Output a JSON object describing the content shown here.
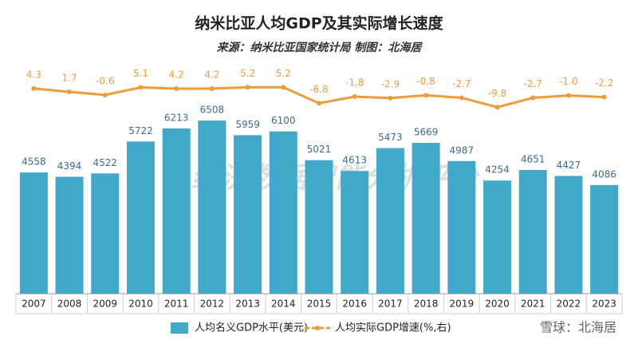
{
  "chart_data": {
    "type": "bar_line",
    "title": "纳米比亚人均GDP及其实际增长速度",
    "subtitle": "来源：纳米比亚国家统计局  制图：北海居",
    "annotations": [
      "经济数据智能分析平台",
      "雪球：北海居"
    ],
    "categories": [
      "2007",
      "2008",
      "2009",
      "2010",
      "2011",
      "2012",
      "2013",
      "2014",
      "2015",
      "2016",
      "2017",
      "2018",
      "2019",
      "2020",
      "2021",
      "2022",
      "2023"
    ],
    "series": [
      {
        "name": "人均名义GDP水平(美元)",
        "type": "bar",
        "color": "#41a8c9",
        "values": [
          4558,
          4394,
          4522,
          5722,
          6213,
          6508,
          5959,
          6100,
          5021,
          4613,
          5473,
          5669,
          4987,
          4254,
          4651,
          4427,
          4086
        ]
      },
      {
        "name": "人均实际GDP增速(%,右)",
        "type": "line",
        "axis": "y2",
        "color": "#ee9b3a",
        "values": [
          4.3,
          1.7,
          -0.6,
          5.1,
          4.2,
          4.2,
          5.2,
          5.2,
          -6.8,
          -1.8,
          -2.9,
          -0.8,
          -2.7,
          -9.8,
          -2.7,
          -1.0,
          -2.2
        ],
        "value_labels": [
          "4.3",
          "1.7",
          "-0.6",
          "5.1",
          "4.2",
          "4.2",
          "5.2",
          "5.2",
          "-6.8",
          "-1.8",
          "-2.9",
          "-0.8",
          "-2.7",
          "-9.8",
          "-2.7",
          "-1.0",
          "-2.2"
        ]
      }
    ],
    "ylim": [
      0,
      9000
    ],
    "y2lim": [
      -150,
      30
    ]
  }
}
